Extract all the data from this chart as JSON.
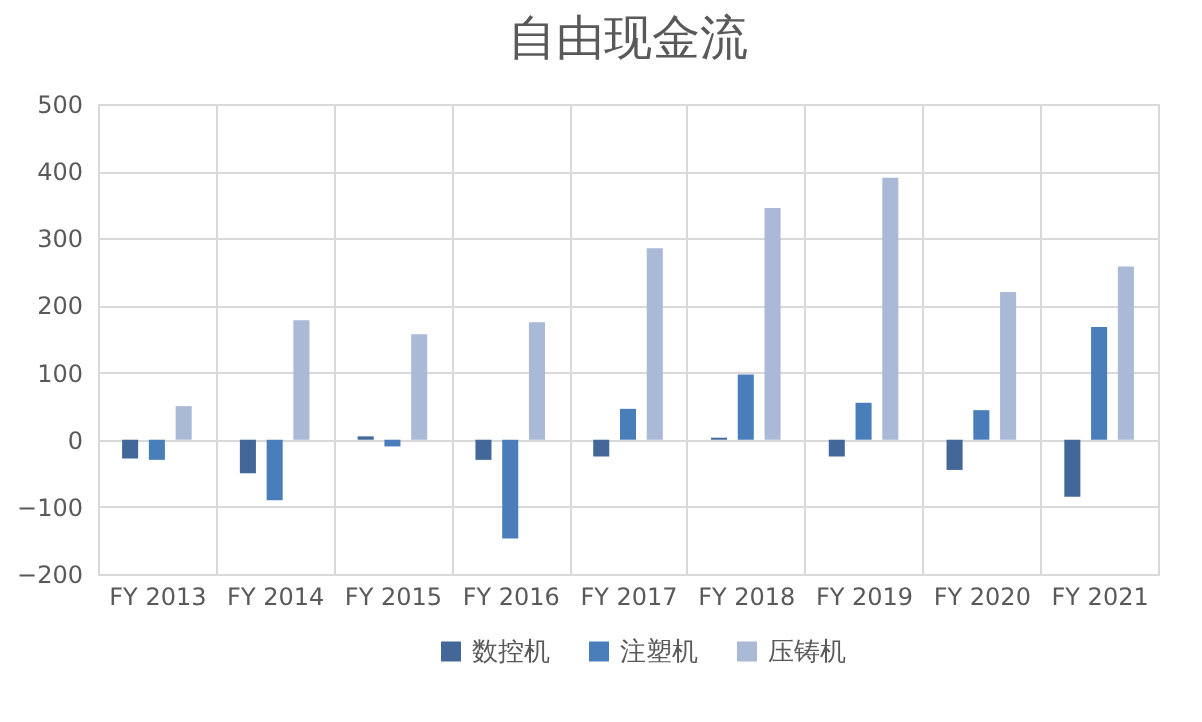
{
  "chart_data": {
    "type": "bar",
    "title": "自由现金流",
    "categories": [
      "FY 2013",
      "FY 2014",
      "FY 2015",
      "FY 2016",
      "FY 2017",
      "FY 2018",
      "FY 2019",
      "FY 2020",
      "FY 2021"
    ],
    "series": [
      {
        "name": "数控机",
        "color": "#44679a",
        "values": [
          -28,
          -50,
          5,
          -30,
          -25,
          3,
          -25,
          -45,
          -85
        ]
      },
      {
        "name": "注塑机",
        "color": "#4a7ebb",
        "values": [
          -30,
          -90,
          -10,
          -147,
          46,
          97,
          55,
          44,
          168
        ]
      },
      {
        "name": "压铸机",
        "color": "#a9b9d6",
        "values": [
          50,
          178,
          157,
          175,
          285,
          345,
          390,
          220,
          258
        ]
      }
    ],
    "ylim": [
      -200,
      500
    ],
    "yticks": [
      -200,
      -100,
      0,
      100,
      200,
      300,
      400,
      500
    ],
    "grid": true,
    "legend": "bottom"
  }
}
